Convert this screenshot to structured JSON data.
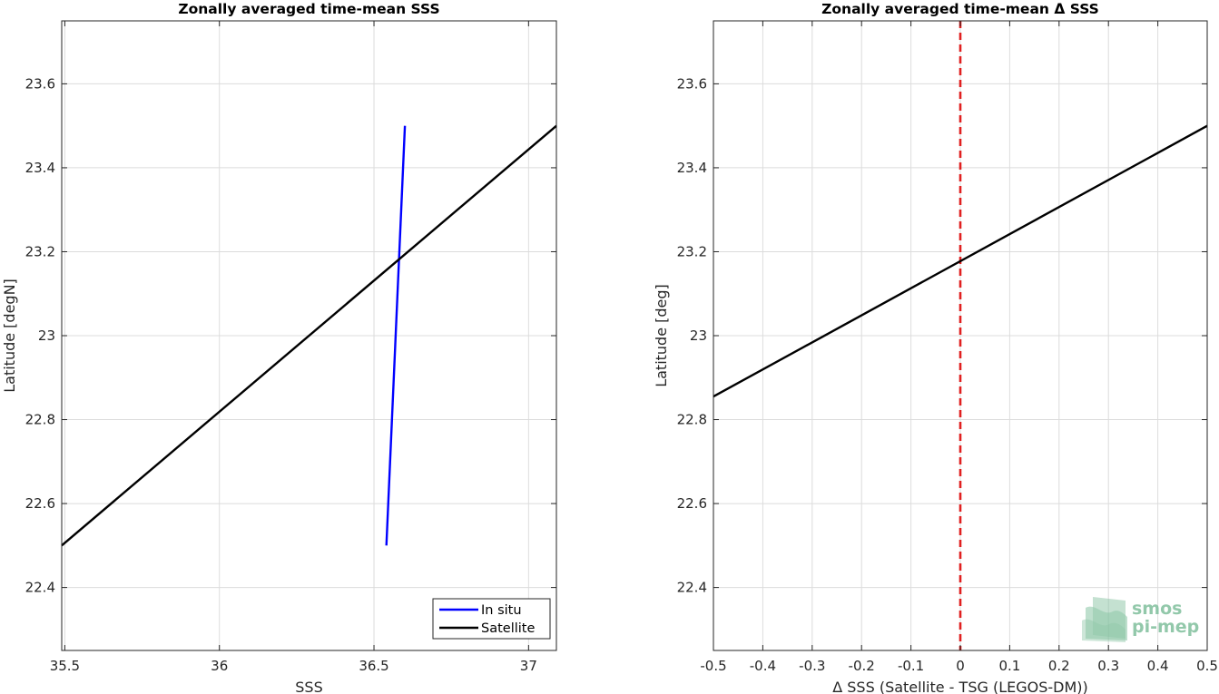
{
  "chart_data": [
    {
      "type": "line",
      "title": "Zonally averaged time-mean SSS",
      "xlabel": "SSS",
      "ylabel": "Latitude [degN]",
      "xlim": [
        35.49,
        37.09
      ],
      "ylim": [
        22.25,
        23.75
      ],
      "xticks": [
        35.5,
        36,
        36.5,
        37
      ],
      "xtick_labels": [
        "35.5",
        "36",
        "36.5",
        "37"
      ],
      "yticks": [
        22.4,
        22.6,
        22.8,
        23,
        23.2,
        23.4,
        23.6
      ],
      "ytick_labels": [
        "22.4",
        "22.6",
        "22.8",
        "23",
        "23.2",
        "23.4",
        "23.6"
      ],
      "grid": true,
      "legend_position": "bottom-right",
      "series": [
        {
          "name": "In situ",
          "color": "#0000ff",
          "x": [
            36.54,
            36.6
          ],
          "y": [
            22.5,
            23.5
          ]
        },
        {
          "name": "Satellite",
          "color": "#000000",
          "x": [
            35.49,
            37.09
          ],
          "y": [
            22.5,
            23.5
          ]
        }
      ]
    },
    {
      "type": "line",
      "title": "Zonally averaged time-mean Δ SSS",
      "xlabel": "Δ SSS (Satellite - TSG (LEGOS-DM))",
      "ylabel": "Latitude [deg]",
      "xlim": [
        -0.5,
        0.5
      ],
      "ylim": [
        22.25,
        23.75
      ],
      "xticks": [
        -0.5,
        -0.4,
        -0.3,
        -0.2,
        -0.1,
        0,
        0.1,
        0.2,
        0.3,
        0.4,
        0.5
      ],
      "xtick_labels": [
        "-0.5",
        "-0.4",
        "-0.3",
        "-0.2",
        "-0.1",
        "0",
        "0.1",
        "0.2",
        "0.3",
        "0.4",
        "0.5"
      ],
      "yticks": [
        22.4,
        22.6,
        22.8,
        23,
        23.2,
        23.4,
        23.6
      ],
      "ytick_labels": [
        "22.4",
        "22.6",
        "22.8",
        "23",
        "23.2",
        "23.4",
        "23.6"
      ],
      "grid": true,
      "series": [
        {
          "color": "#000000",
          "x": [
            -0.5,
            0.5
          ],
          "y": [
            22.855,
            23.5
          ]
        }
      ],
      "reference_line": {
        "x": 0,
        "color": "#e02020",
        "style": "dashed"
      }
    }
  ],
  "watermark": {
    "line1": "smos",
    "line2": "pi-mep",
    "color": "#7fbf9c"
  }
}
